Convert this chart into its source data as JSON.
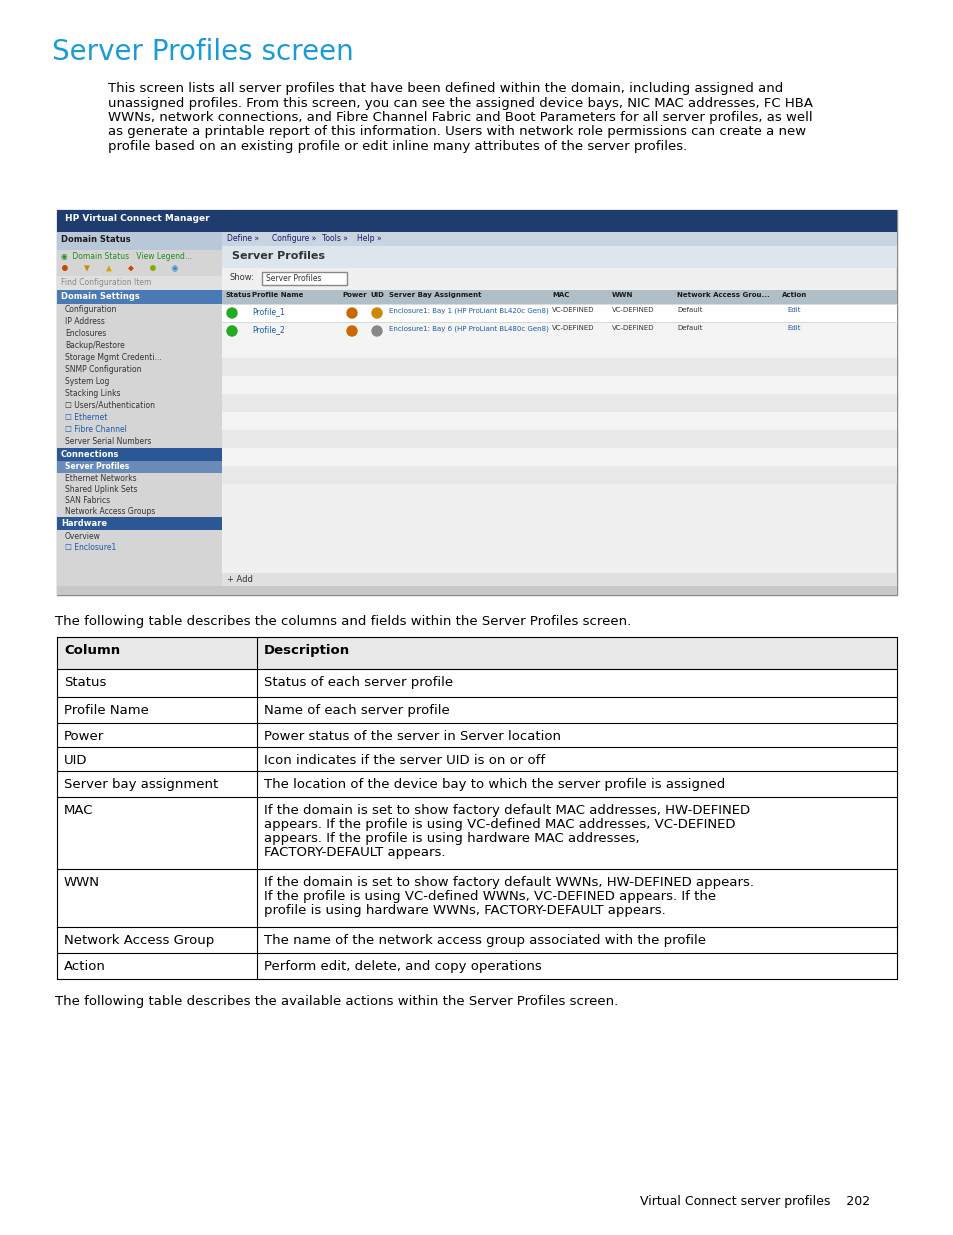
{
  "title": "Server Profiles screen",
  "title_color": "#1a9bd7",
  "title_fontsize": 20,
  "body_lines": [
    "This screen lists all server profiles that have been defined within the domain, including assigned and",
    "unassigned profiles. From this screen, you can see the assigned device bays, NIC MAC addresses, FC HBA",
    "WWNs, network connections, and Fibre Channel Fabric and Boot Parameters for all server profiles, as well",
    "as generate a printable report of this information. Users with network role permissions can create a new",
    "profile based on an existing profile or edit inline many attributes of the server profiles."
  ],
  "body_fontsize": 9.5,
  "table_intro": "The following table describes the columns and fields within the Server Profiles screen.",
  "table_rows": [
    [
      "Column",
      "Description"
    ],
    [
      "Status",
      "Status of each server profile"
    ],
    [
      "Profile Name",
      "Name of each server profile"
    ],
    [
      "Power",
      "Power status of the server in Server location"
    ],
    [
      "UID",
      "Icon indicates if the server UID is on or off"
    ],
    [
      "Server bay assignment",
      "The location of the device bay to which the server profile is assigned"
    ],
    [
      "MAC",
      "If the domain is set to show factory default MAC addresses, HW-DEFINED\nappears. If the profile is using VC-defined MAC addresses, VC-DEFINED\nappears. If the profile is using hardware MAC addresses,\nFACTORY-DEFAULT appears."
    ],
    [
      "WWN",
      "If the domain is set to show factory default WWNs, HW-DEFINED appears.\nIf the profile is using VC-defined WWNs, VC-DEFINED appears. If the\nprofile is using hardware WWNs, FACTORY-DEFAULT appears."
    ],
    [
      "Network Access Group",
      "The name of the network access group associated with the profile"
    ],
    [
      "Action",
      "Perform edit, delete, and copy operations"
    ]
  ],
  "table2_intro": "The following table describes the available actions within the Server Profiles screen.",
  "footer_text": "Virtual Connect server profiles    202",
  "bg_color": "#ffffff",
  "text_color": "#000000",
  "nav_bar_color": "#1e3d6e",
  "nav_sub_color": "#3a5a8a",
  "left_panel_color": "#d8d8d8",
  "conn_bar_color": "#2b5797",
  "hw_bar_color": "#2b5797",
  "domain_settings_color": "#4a7ab5",
  "screenshot_outline": "#aaaaaa",
  "table_border_color": "#000000",
  "header_bg": "#e8e8e8"
}
